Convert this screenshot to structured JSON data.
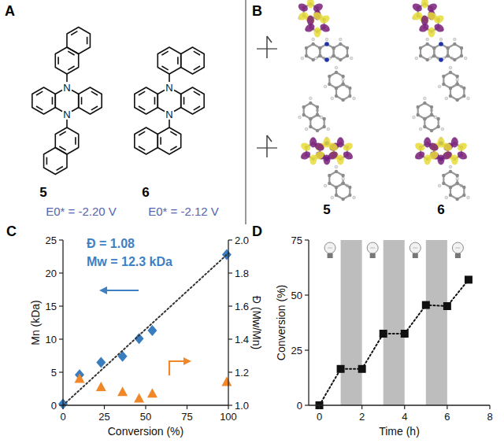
{
  "panels": {
    "A": {
      "letter": "A",
      "atom_label": "N",
      "structures": [
        {
          "label": "5",
          "potential": "E0* = -2.20 V",
          "naphthyl_position": 2
        },
        {
          "label": "6",
          "potential": "E0* = -2.12 V",
          "naphthyl_position": 1
        }
      ]
    },
    "B": {
      "letter": "B",
      "orbitals": [
        {
          "label": "5"
        },
        {
          "label": "6"
        }
      ]
    }
  },
  "chart_data": [
    {
      "type": "scatter",
      "letter": "C",
      "annotations": [
        "Đ = 1.08",
        "Mw = 12.3 kDa"
      ],
      "x_label": "Conversion (%)",
      "y_label": "Mn (kDa)",
      "y2_label": "Đ (Mw/Mn)",
      "xlim": [
        0,
        100
      ],
      "xticks": [
        0,
        25,
        50,
        75,
        100
      ],
      "ylim": [
        0,
        25
      ],
      "yticks": [
        0,
        5,
        10,
        15,
        20,
        25
      ],
      "y2lim": [
        1,
        2
      ],
      "y2ticks": [
        {
          "value": 1,
          "label": "1.0"
        },
        1.2,
        1.4,
        1.6,
        1.8,
        {
          "value": 2,
          "label": "2.0"
        }
      ],
      "series": [
        {
          "x": [
            0,
            10,
            23,
            36,
            46,
            54,
            99
          ],
          "values": [
            0.2,
            4.6,
            6.5,
            7.4,
            10.1,
            11.3,
            22.8
          ],
          "color": "#3a7dbf",
          "marker": "diamond"
        },
        {
          "x": [
            10,
            23,
            36,
            46,
            54,
            99
          ],
          "values": [
            1.16,
            1.11,
            1.08,
            1.04,
            1.07,
            1.14
          ],
          "color": "#f0882a",
          "marker": "triangle",
          "axis": "y2"
        },
        {
          "type": "line",
          "x": [
            0,
            100
          ],
          "values": [
            0,
            23
          ],
          "color": "#333333",
          "line_style": "dotted"
        }
      ]
    },
    {
      "type": "line",
      "letter": "D",
      "x_label": "Time (h)",
      "y_label": "Conversion (%)",
      "xlim": [
        -0.5,
        8
      ],
      "xticks": [
        0,
        2,
        4,
        6,
        8
      ],
      "ylim": [
        0,
        75
      ],
      "yticks": [
        0,
        25,
        50,
        75
      ],
      "shaded": [
        [
          1,
          2
        ],
        [
          3,
          4
        ],
        [
          5,
          6
        ]
      ],
      "series": [
        {
          "x": [
            0,
            1,
            2,
            3,
            4,
            5,
            6,
            7
          ],
          "values": [
            0,
            16.5,
            16.5,
            32.5,
            32.5,
            45.5,
            45,
            57
          ],
          "color": "#111111",
          "marker": "square",
          "line_style": "dotted"
        }
      ]
    }
  ]
}
